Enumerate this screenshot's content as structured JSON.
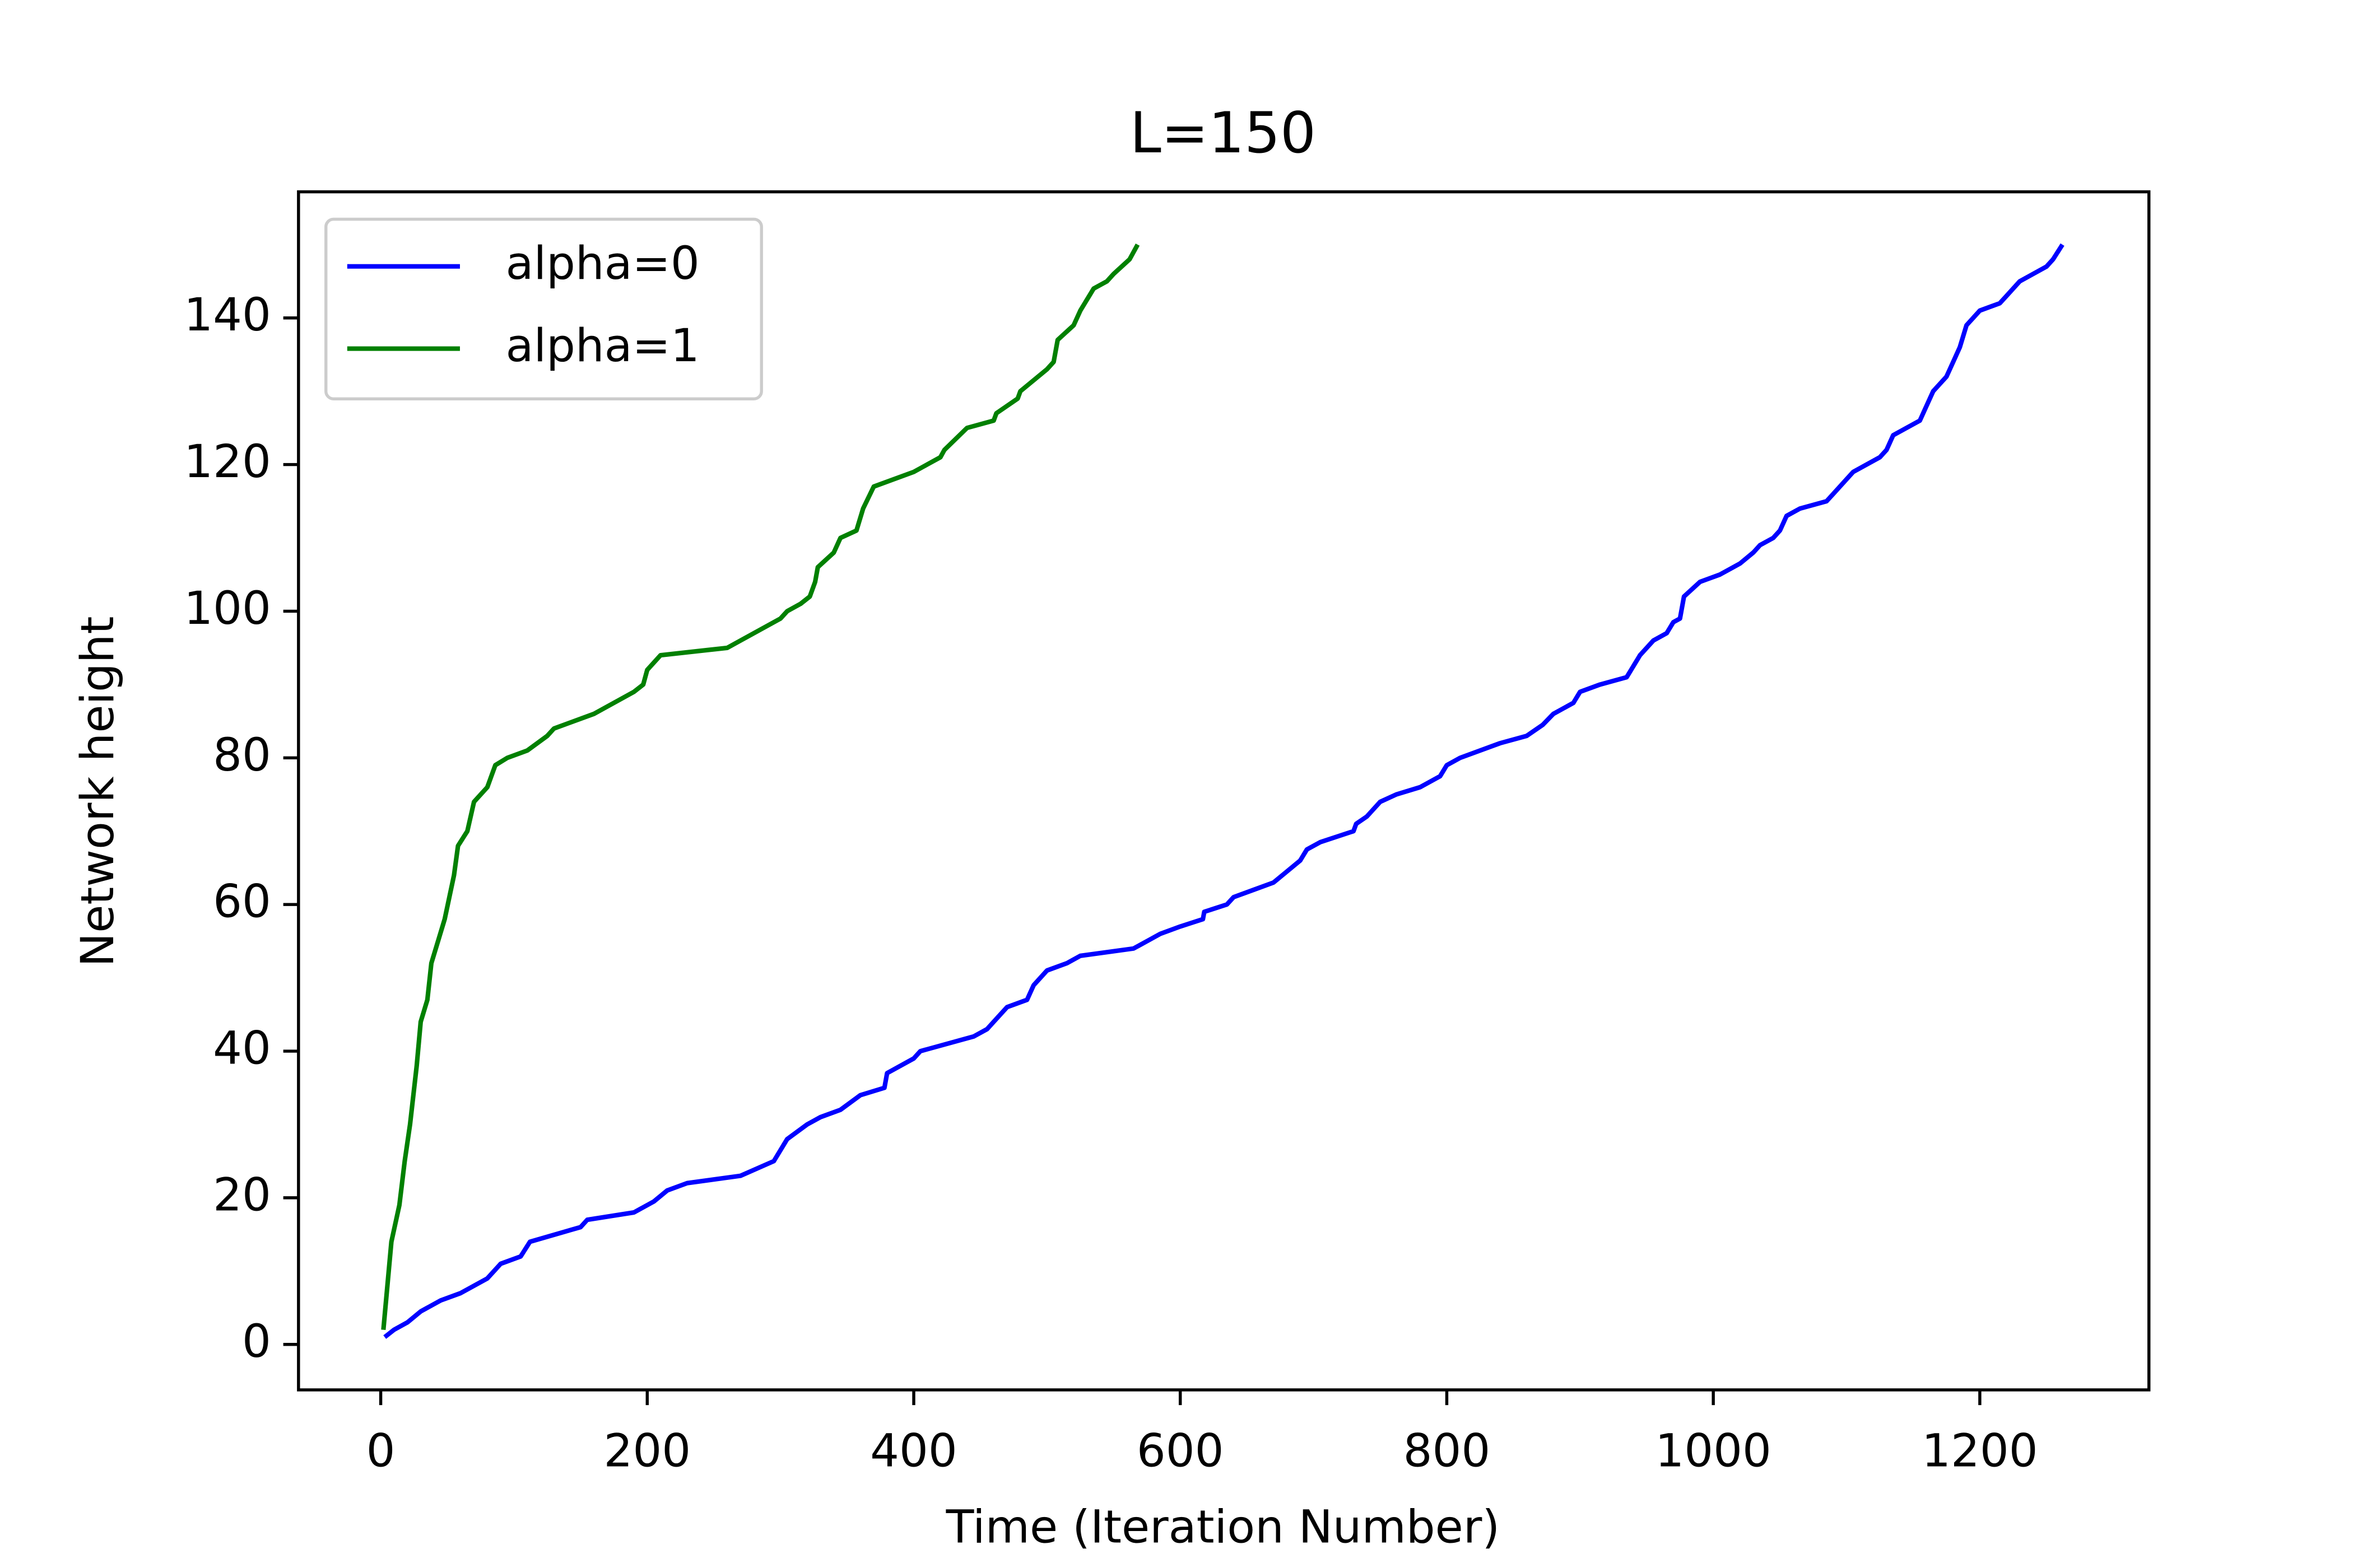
{
  "chart_data": {
    "type": "line",
    "title": "L=150",
    "x_label": "Time (Iteration Number)",
    "y_label": "Network height",
    "xlim": [
      -61.7,
      1326.9
    ],
    "ylim": [
      -6.2,
      157.2
    ],
    "xticks": [
      0,
      200,
      400,
      600,
      800,
      1000,
      1200
    ],
    "yticks": [
      0,
      20,
      40,
      60,
      80,
      100,
      120,
      140
    ],
    "legend": "upper left",
    "series": [
      {
        "name": "alpha=0",
        "color": "#0000ff",
        "x": [
          3,
          10,
          20,
          30,
          45,
          60,
          80,
          90,
          105,
          112,
          150,
          155,
          190,
          205,
          215,
          230,
          270,
          295,
          305,
          320,
          330,
          345,
          360,
          378,
          380,
          400,
          405,
          445,
          455,
          470,
          485,
          490,
          500,
          515,
          525,
          565,
          575,
          585,
          600,
          617,
          618,
          635,
          640,
          655,
          670,
          690,
          695,
          705,
          730,
          732,
          740,
          750,
          762,
          780,
          795,
          800,
          810,
          840,
          860,
          872,
          880,
          895,
          900,
          915,
          935,
          945,
          955,
          965,
          970,
          975,
          978,
          990,
          1005,
          1020,
          1030,
          1035,
          1045,
          1050,
          1055,
          1065,
          1085,
          1090,
          1100,
          1105,
          1125,
          1130,
          1135,
          1155,
          1160,
          1165,
          1170,
          1175,
          1180,
          1185,
          1190,
          1195,
          1200,
          1215,
          1220,
          1225,
          1230,
          1250,
          1255,
          1262
        ],
        "values": [
          1,
          2,
          3,
          4.5,
          6,
          7,
          9,
          11,
          12,
          14,
          16,
          17,
          18,
          19.5,
          21,
          22,
          23,
          25,
          28,
          30,
          31,
          32,
          34,
          35,
          37,
          39,
          40,
          42,
          43,
          46,
          47,
          49,
          51,
          52,
          53,
          54,
          55,
          56,
          57,
          58,
          59,
          60,
          61,
          62,
          63,
          66,
          67.5,
          68.5,
          70,
          71,
          72,
          74,
          75,
          76,
          77.5,
          79,
          80,
          82,
          83,
          84.5,
          86,
          87.5,
          89,
          90,
          91,
          94,
          96,
          97,
          98.5,
          99,
          102,
          104,
          105,
          106.5,
          108,
          109,
          110,
          111,
          113,
          114,
          115,
          116,
          118,
          119,
          121,
          122,
          124,
          126,
          128,
          130,
          131,
          132,
          134,
          136,
          139,
          140,
          141,
          142,
          143,
          144,
          145,
          147,
          148,
          150
        ]
      },
      {
        "name": "alpha=1",
        "color": "#008000",
        "x": [
          2,
          8,
          14,
          18,
          22,
          27,
          30,
          35,
          38,
          43,
          48,
          55,
          58,
          65,
          70,
          75,
          80,
          86,
          95,
          110,
          125,
          130,
          160,
          180,
          190,
          197,
          200,
          210,
          260,
          270,
          285,
          300,
          305,
          315,
          322,
          326,
          328,
          340,
          345,
          357,
          362,
          370,
          400,
          410,
          420,
          423,
          440,
          460,
          462,
          478,
          480,
          500,
          505,
          508,
          520,
          525,
          535,
          545,
          550,
          562,
          568
        ],
        "values": [
          2,
          14,
          19,
          25,
          30,
          38,
          44,
          47,
          52,
          55,
          58,
          64,
          68,
          70,
          74,
          75,
          76,
          79,
          80,
          81,
          83,
          84,
          86,
          88,
          89,
          90,
          92,
          94,
          95,
          96,
          97.5,
          99,
          100,
          101,
          102,
          104,
          106,
          108,
          110,
          111,
          114,
          117,
          119,
          120,
          121,
          122,
          125,
          126,
          127,
          129,
          130,
          133,
          134,
          137,
          139,
          141,
          144,
          145,
          146,
          148,
          150
        ]
      }
    ]
  }
}
